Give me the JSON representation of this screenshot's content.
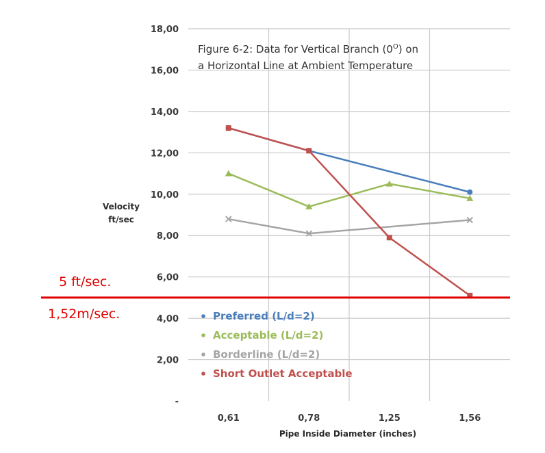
{
  "chart_data": {
    "type": "line",
    "title_line1": "Figure 6-2: Data for Vertical Branch (0",
    "title_sup": "O",
    "title_line1_end": ") on",
    "title_line2": "a Horizontal Line at Ambient Temperature",
    "xlabel": "Pipe Inside Diameter (inches)",
    "ylabel_line1": "Velocity",
    "ylabel_line2": "ft/sec",
    "categories": [
      "0,61",
      "0,78",
      "1,25",
      "1,56"
    ],
    "yticks": [
      "-",
      "2,00",
      "4,00",
      "6,00",
      "8,00",
      "10,00",
      "12,00",
      "14,00",
      "16,00",
      "18,00"
    ],
    "ylim": [
      0,
      18
    ],
    "grid": true,
    "legend_position": "bottom-left",
    "series": [
      {
        "name": "Preferred (L/d=2)",
        "color": "#4a7ebb",
        "marker": "circle",
        "values": [
          13.2,
          12.1,
          null,
          10.1
        ]
      },
      {
        "name": "Acceptable (L/d=2)",
        "color": "#9bbb59",
        "marker": "triangle",
        "values": [
          11.0,
          9.4,
          10.5,
          9.8
        ]
      },
      {
        "name": "Borderline (L/d=2)",
        "color": "#a5a5a5",
        "marker": "x",
        "values": [
          8.8,
          8.1,
          null,
          8.75
        ]
      },
      {
        "name": "Short Outlet Acceptable",
        "color": "#c0504d",
        "marker": "square",
        "values": [
          13.2,
          12.1,
          7.9,
          5.1
        ]
      }
    ],
    "reference_line": {
      "value": 5,
      "color": "#e00000",
      "label_top": "5 ft/sec.",
      "label_bottom": "1,52m/sec."
    }
  }
}
